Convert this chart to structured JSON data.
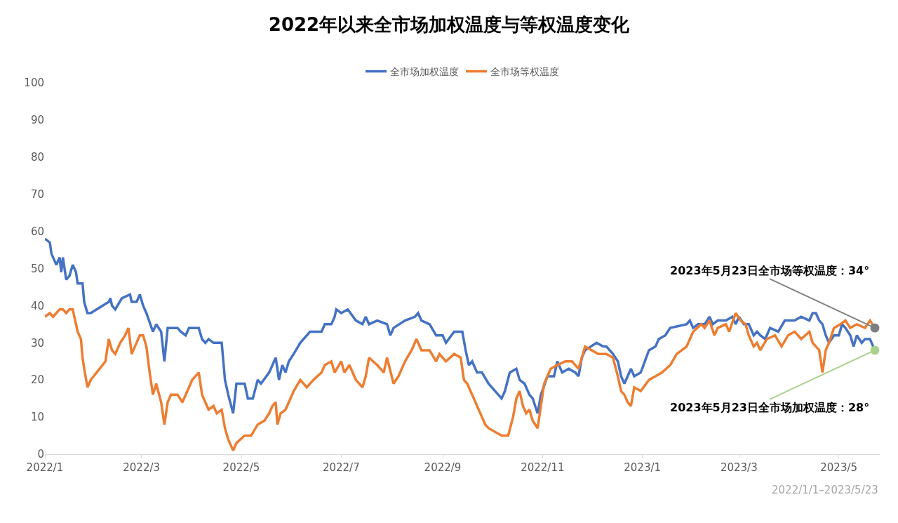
{
  "chart_data": {
    "type": "line",
    "title": "2022年以来全市场加权温度与等权温度变化",
    "xlim": [
      "2022-01-01",
      "2023-05-26"
    ],
    "xticks": [
      {
        "value": "2022-01-01",
        "label": "2022/1"
      },
      {
        "value": "2022-03-01",
        "label": "2022/3"
      },
      {
        "value": "2022-05-01",
        "label": "2022/5"
      },
      {
        "value": "2022-07-01",
        "label": "2022/7"
      },
      {
        "value": "2022-09-01",
        "label": "2022/9"
      },
      {
        "value": "2022-11-01",
        "label": "2022/11"
      },
      {
        "value": "2023-01-01",
        "label": "2023/1"
      },
      {
        "value": "2023-03-01",
        "label": "2023/3"
      },
      {
        "value": "2023-05-01",
        "label": "2023/5"
      }
    ],
    "ylim": [
      0,
      100
    ],
    "yticks": [
      0,
      10,
      20,
      30,
      40,
      50,
      60,
      70,
      80,
      90,
      100
    ],
    "grid": false,
    "legend": "top",
    "marker": "none",
    "line_style": "solid",
    "series": [
      {
        "name": "全市场加权温度",
        "color": "#4472c4",
        "x": [
          "2022-01-01",
          "2022-01-04",
          "2022-01-05",
          "2022-01-07",
          "2022-01-08",
          "2022-01-10",
          "2022-01-11",
          "2022-01-12",
          "2022-01-14",
          "2022-01-16",
          "2022-01-18",
          "2022-01-20",
          "2022-01-21",
          "2022-01-24",
          "2022-01-25",
          "2022-01-27",
          "2022-01-29",
          "2022-02-09",
          "2022-02-10",
          "2022-02-11",
          "2022-02-13",
          "2022-02-17",
          "2022-02-22",
          "2022-02-23",
          "2022-02-26",
          "2022-02-28",
          "2022-03-02",
          "2022-03-04",
          "2022-03-08",
          "2022-03-10",
          "2022-03-13",
          "2022-03-15",
          "2022-03-17",
          "2022-03-23",
          "2022-03-25",
          "2022-03-28",
          "2022-03-30",
          "2022-04-05",
          "2022-04-07",
          "2022-04-09",
          "2022-04-11",
          "2022-04-14",
          "2022-04-19",
          "2022-04-21",
          "2022-04-23",
          "2022-04-26",
          "2022-04-28",
          "2022-05-03",
          "2022-05-05",
          "2022-05-08",
          "2022-05-11",
          "2022-05-13",
          "2022-05-18",
          "2022-05-22",
          "2022-05-24",
          "2022-05-26",
          "2022-05-28",
          "2022-05-30",
          "2022-06-02",
          "2022-06-06",
          "2022-06-10",
          "2022-06-12",
          "2022-06-19",
          "2022-06-21",
          "2022-06-25",
          "2022-06-27",
          "2022-06-28",
          "2022-07-01",
          "2022-07-05",
          "2022-07-10",
          "2022-07-14",
          "2022-07-16",
          "2022-07-18",
          "2022-07-23",
          "2022-07-29",
          "2022-07-31",
          "2022-08-02",
          "2022-08-09",
          "2022-08-15",
          "2022-08-17",
          "2022-08-19",
          "2022-08-24",
          "2022-08-28",
          "2022-09-01",
          "2022-09-03",
          "2022-09-08",
          "2022-09-13",
          "2022-09-15",
          "2022-09-17",
          "2022-09-19",
          "2022-09-22",
          "2022-09-25",
          "2022-09-29",
          "2022-10-07",
          "2022-10-09",
          "2022-10-12",
          "2022-10-16",
          "2022-10-18",
          "2022-10-21",
          "2022-10-24",
          "2022-10-26",
          "2022-10-29",
          "2022-10-31",
          "2022-11-04",
          "2022-11-08",
          "2022-11-10",
          "2022-11-13",
          "2022-11-17",
          "2022-11-21",
          "2022-11-23",
          "2022-11-25",
          "2022-11-27",
          "2022-12-04",
          "2022-12-08",
          "2022-12-10",
          "2022-12-14",
          "2022-12-17",
          "2022-12-19",
          "2022-12-21",
          "2022-12-25",
          "2022-12-27",
          "2022-12-31",
          "2023-01-05",
          "2023-01-09",
          "2023-01-11",
          "2023-01-15",
          "2023-01-18",
          "2023-01-28",
          "2023-01-30",
          "2023-02-01",
          "2023-02-04",
          "2023-02-08",
          "2023-02-11",
          "2023-02-13",
          "2023-02-16",
          "2023-02-21",
          "2023-02-25",
          "2023-02-27",
          "2023-03-01",
          "2023-03-04",
          "2023-03-07",
          "2023-03-10",
          "2023-03-12",
          "2023-03-14",
          "2023-03-17",
          "2023-03-20",
          "2023-03-25",
          "2023-03-29",
          "2023-04-04",
          "2023-04-08",
          "2023-04-13",
          "2023-04-15",
          "2023-04-17",
          "2023-04-19",
          "2023-04-21",
          "2023-04-23",
          "2023-04-25",
          "2023-04-28",
          "2023-05-01",
          "2023-05-03",
          "2023-05-05",
          "2023-05-08",
          "2023-05-10",
          "2023-05-12",
          "2023-05-15",
          "2023-05-17",
          "2023-05-20",
          "2023-05-23"
        ],
        "values": [
          58,
          57,
          54,
          52,
          51,
          53,
          49,
          53,
          47,
          48,
          51,
          49,
          46,
          46,
          41,
          38,
          38,
          41,
          42,
          40,
          39,
          42,
          43,
          41,
          41,
          43,
          40,
          38,
          33,
          35,
          33,
          25,
          34,
          34,
          33,
          32,
          34,
          34,
          31,
          30,
          31,
          30,
          30,
          20,
          16,
          11,
          19,
          19,
          15,
          15,
          20,
          19,
          22,
          26,
          20,
          24,
          22,
          25,
          27,
          30,
          32,
          33,
          33,
          35,
          35,
          37,
          39,
          38,
          39,
          36,
          35,
          37,
          35,
          36,
          35,
          32,
          34,
          36,
          37,
          38,
          36,
          35,
          32,
          32,
          30,
          33,
          33,
          28,
          24,
          25,
          22,
          22,
          19,
          15,
          17,
          22,
          23,
          20,
          19,
          16,
          15,
          11,
          16,
          21,
          21,
          25,
          22,
          23,
          22,
          21,
          26,
          28,
          30,
          29,
          29,
          27,
          25,
          21,
          19,
          23,
          21,
          22,
          28,
          29,
          31,
          32,
          34,
          35,
          36,
          34,
          35,
          35,
          37,
          35,
          36,
          36,
          37,
          35,
          37,
          35,
          35,
          32,
          33,
          32,
          31,
          34,
          33,
          36,
          36,
          37,
          36,
          38,
          38,
          36,
          35,
          32,
          30,
          32,
          32,
          35,
          34,
          32,
          29,
          32,
          30,
          31,
          31,
          28
        ]
      },
      {
        "name": "全市场等权温度",
        "color": "#ed7d31",
        "x": [
          "2022-01-01",
          "2022-01-04",
          "2022-01-06",
          "2022-01-08",
          "2022-01-10",
          "2022-01-12",
          "2022-01-14",
          "2022-01-16",
          "2022-01-18",
          "2022-01-20",
          "2022-01-21",
          "2022-01-23",
          "2022-01-24",
          "2022-01-25",
          "2022-01-27",
          "2022-01-29",
          "2022-02-07",
          "2022-02-09",
          "2022-02-11",
          "2022-02-13",
          "2022-02-16",
          "2022-02-19",
          "2022-02-21",
          "2022-02-23",
          "2022-02-25",
          "2022-02-28",
          "2022-03-02",
          "2022-03-04",
          "2022-03-06",
          "2022-03-08",
          "2022-03-10",
          "2022-03-13",
          "2022-03-15",
          "2022-03-17",
          "2022-03-19",
          "2022-03-21",
          "2022-03-23",
          "2022-03-26",
          "2022-03-29",
          "2022-04-01",
          "2022-04-05",
          "2022-04-07",
          "2022-04-09",
          "2022-04-11",
          "2022-04-14",
          "2022-04-16",
          "2022-04-19",
          "2022-04-21",
          "2022-04-23",
          "2022-04-26",
          "2022-04-28",
          "2022-05-03",
          "2022-05-07",
          "2022-05-11",
          "2022-05-15",
          "2022-05-18",
          "2022-05-20",
          "2022-05-22",
          "2022-05-23",
          "2022-05-25",
          "2022-05-28",
          "2022-06-02",
          "2022-06-06",
          "2022-06-10",
          "2022-06-14",
          "2022-06-19",
          "2022-06-21",
          "2022-06-25",
          "2022-06-27",
          "2022-07-01",
          "2022-07-03",
          "2022-07-06",
          "2022-07-10",
          "2022-07-14",
          "2022-07-16",
          "2022-07-18",
          "2022-07-23",
          "2022-07-27",
          "2022-07-29",
          "2022-08-02",
          "2022-08-05",
          "2022-08-09",
          "2022-08-13",
          "2022-08-16",
          "2022-08-19",
          "2022-08-24",
          "2022-08-28",
          "2022-08-30",
          "2022-09-03",
          "2022-09-08",
          "2022-09-12",
          "2022-09-14",
          "2022-09-16",
          "2022-09-20",
          "2022-09-22",
          "2022-09-25",
          "2022-09-27",
          "2022-09-29",
          "2022-10-07",
          "2022-10-11",
          "2022-10-14",
          "2022-10-16",
          "2022-10-18",
          "2022-10-20",
          "2022-10-22",
          "2022-10-24",
          "2022-10-26",
          "2022-10-29",
          "2022-10-31",
          "2022-11-02",
          "2022-11-06",
          "2022-11-10",
          "2022-11-15",
          "2022-11-19",
          "2022-11-23",
          "2022-11-27",
          "2022-12-01",
          "2022-12-05",
          "2022-12-10",
          "2022-12-14",
          "2022-12-17",
          "2022-12-19",
          "2022-12-21",
          "2022-12-23",
          "2022-12-25",
          "2022-12-27",
          "2022-12-31",
          "2023-01-05",
          "2023-01-09",
          "2023-01-13",
          "2023-01-18",
          "2023-01-22",
          "2023-01-28",
          "2023-01-30",
          "2023-02-01",
          "2023-02-06",
          "2023-02-08",
          "2023-02-11",
          "2023-02-14",
          "2023-02-16",
          "2023-02-21",
          "2023-02-23",
          "2023-02-27",
          "2023-03-02",
          "2023-03-05",
          "2023-03-07",
          "2023-03-10",
          "2023-03-12",
          "2023-03-14",
          "2023-03-18",
          "2023-03-23",
          "2023-03-27",
          "2023-03-31",
          "2023-04-04",
          "2023-04-08",
          "2023-04-13",
          "2023-04-15",
          "2023-04-19",
          "2023-04-21",
          "2023-04-23",
          "2023-04-25",
          "2023-04-28",
          "2023-05-02",
          "2023-05-05",
          "2023-05-08",
          "2023-05-12",
          "2023-05-17",
          "2023-05-20",
          "2023-05-23"
        ],
        "values": [
          37,
          38,
          37,
          38,
          39,
          39,
          38,
          39,
          39,
          35,
          33,
          31,
          26,
          23,
          18,
          20,
          25,
          31,
          28,
          27,
          30,
          32,
          34,
          27,
          29,
          32,
          32,
          29,
          22,
          16,
          19,
          14,
          8,
          14,
          16,
          16,
          16,
          14,
          17,
          20,
          22,
          16,
          14,
          12,
          13,
          11,
          12,
          7,
          4,
          1,
          3,
          5,
          5,
          8,
          9,
          11,
          13,
          14,
          8,
          11,
          12,
          17,
          20,
          18,
          20,
          22,
          24,
          25,
          22,
          25,
          22,
          24,
          20,
          18,
          21,
          26,
          24,
          22,
          26,
          19,
          21,
          25,
          28,
          31,
          28,
          28,
          25,
          27,
          25,
          27,
          26,
          20,
          19,
          15,
          13,
          10,
          8,
          7,
          5,
          5,
          10,
          15,
          17,
          13,
          11,
          12,
          9,
          7,
          13,
          19,
          23,
          24,
          25,
          25,
          23,
          29,
          28,
          27,
          27,
          26,
          21,
          17,
          16,
          14,
          13,
          18,
          17,
          20,
          21,
          22,
          24,
          27,
          29,
          31,
          33,
          35,
          34,
          36,
          32,
          34,
          35,
          33,
          38,
          36,
          35,
          32,
          29,
          30,
          28,
          31,
          32,
          29,
          32,
          33,
          31,
          33,
          30,
          28,
          22,
          28,
          30,
          34,
          35,
          36,
          34,
          35,
          34,
          36,
          34
        ]
      }
    ],
    "annotations": [
      {
        "text": "2023年5月23日全市场等权温度：34°",
        "x": "2023-05-23",
        "y": 34
      },
      {
        "text": "2023年5月23日全市场加权温度：28°",
        "x": "2023-05-23",
        "y": 28
      },
      "2022/1/1–2023/5/23"
    ]
  }
}
